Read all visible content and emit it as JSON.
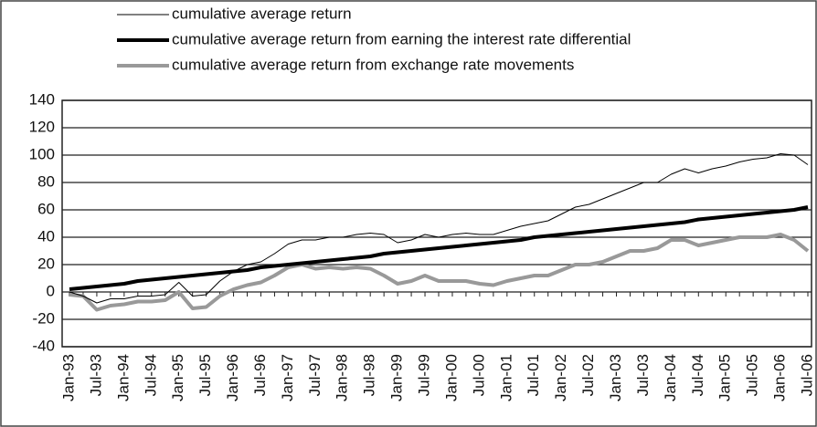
{
  "chart_data": {
    "type": "line",
    "categories": [
      "Jan-93",
      null,
      "Jul-93",
      null,
      "Jan-94",
      null,
      "Jul-94",
      null,
      "Jan-95",
      null,
      "Jul-95",
      null,
      "Jan-96",
      null,
      "Jul-96",
      null,
      "Jan-97",
      null,
      "Jul-97",
      null,
      "Jan-98",
      null,
      "Jul-98",
      null,
      "Jan-99",
      null,
      "Jul-99",
      null,
      "Jan-00",
      null,
      "Jul-00",
      null,
      "Jan-01",
      null,
      "Jul-01",
      null,
      "Jan-02",
      null,
      "Jul-02",
      null,
      "Jan-03",
      null,
      "Jul-03",
      null,
      "Jan-04",
      null,
      "Jul-04",
      null,
      "Jan-05",
      null,
      "Jul-05",
      null,
      "Jan-06",
      null,
      "Jul-06"
    ],
    "series": [
      {
        "name": "cumulative average return",
        "color": "#000000",
        "width": 1,
        "values": [
          0,
          -3,
          -8,
          -5,
          -5,
          -3,
          -3,
          -2,
          7,
          -3,
          -2,
          8,
          15,
          20,
          22,
          28,
          35,
          38,
          38,
          40,
          40,
          42,
          43,
          42,
          36,
          38,
          42,
          40,
          42,
          43,
          42,
          42,
          45,
          48,
          50,
          52,
          57,
          62,
          64,
          68,
          72,
          76,
          80,
          80,
          86,
          90,
          87,
          90,
          92,
          95,
          97,
          98,
          101,
          100,
          93
        ]
      },
      {
        "name": "cumulative average return from earning the interest rate differential",
        "color": "#000000",
        "width": 4,
        "values": [
          2,
          3,
          4,
          5,
          6,
          8,
          9,
          10,
          11,
          12,
          13,
          14,
          15,
          16,
          18,
          19,
          20,
          21,
          22,
          23,
          24,
          25,
          26,
          28,
          29,
          30,
          31,
          32,
          33,
          34,
          35,
          36,
          37,
          38,
          40,
          41,
          42,
          43,
          44,
          45,
          46,
          47,
          48,
          49,
          50,
          51,
          53,
          54,
          55,
          56,
          57,
          58,
          59,
          60,
          62
        ]
      },
      {
        "name": "cumulative average return from exchange rate movements",
        "color": "#999999",
        "width": 4,
        "values": [
          -2,
          -3,
          -13,
          -10,
          -9,
          -7,
          -7,
          -6,
          0,
          -12,
          -11,
          -3,
          2,
          5,
          7,
          12,
          18,
          20,
          17,
          18,
          17,
          18,
          17,
          12,
          6,
          8,
          12,
          8,
          8,
          8,
          6,
          5,
          8,
          10,
          12,
          12,
          16,
          20,
          20,
          22,
          26,
          30,
          30,
          32,
          38,
          38,
          34,
          36,
          38,
          40,
          40,
          40,
          42,
          38,
          30
        ]
      }
    ],
    "ylim": [
      -40,
      140
    ],
    "yticks": [
      -40,
      -20,
      0,
      20,
      40,
      60,
      80,
      100,
      120,
      140
    ],
    "grid": true,
    "legend": "top"
  }
}
